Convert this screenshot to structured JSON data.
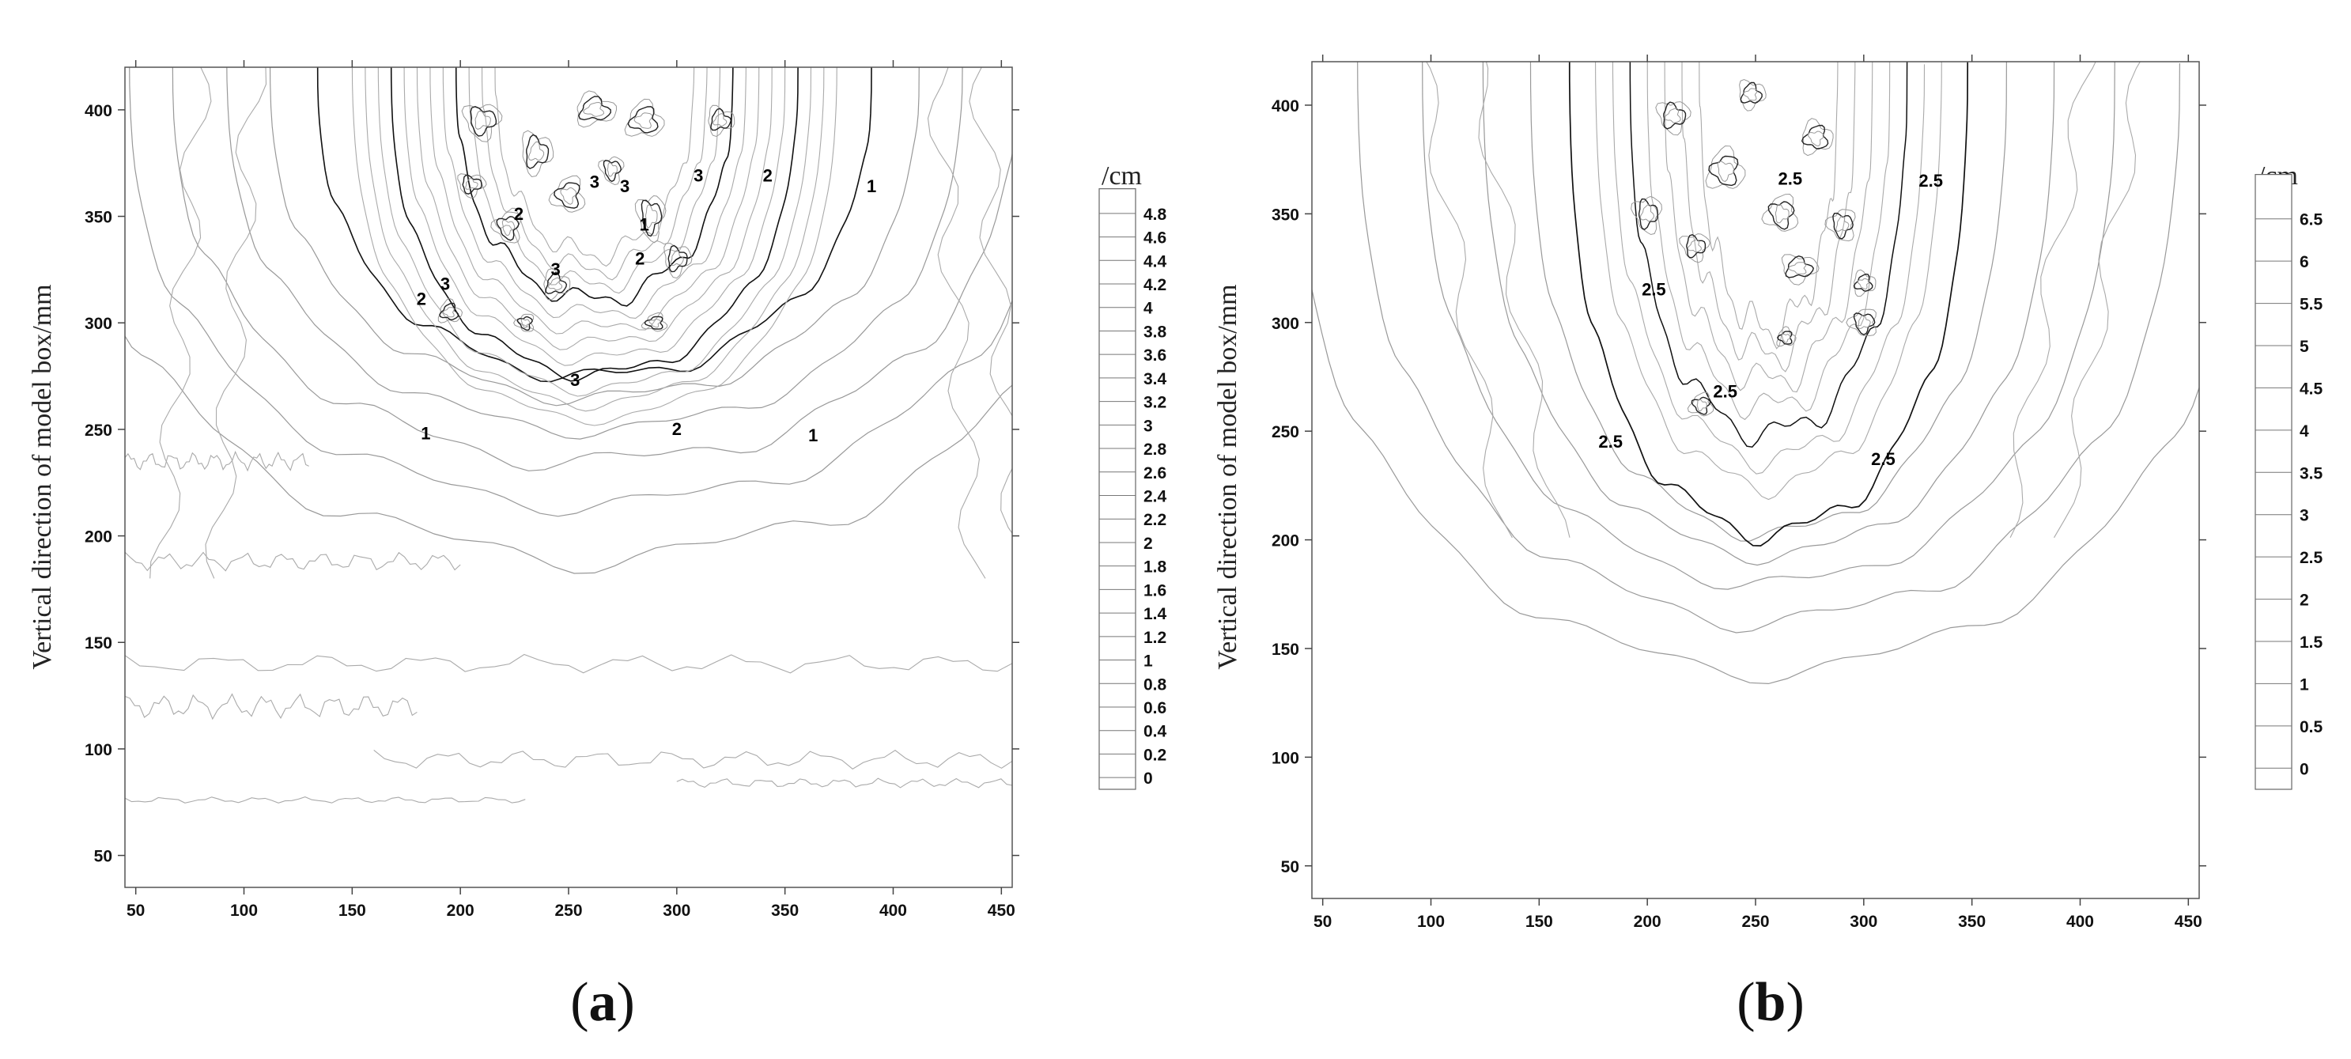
{
  "chart_data": [
    {
      "panel": "a",
      "type": "contour",
      "ylabel": "Vertical direction of model box/mm",
      "xlabel": "",
      "xlim": [
        45,
        455
      ],
      "ylim": [
        35,
        420
      ],
      "x_ticks": [
        "50",
        "100",
        "150",
        "200",
        "250",
        "300",
        "350",
        "400",
        "450"
      ],
      "y_ticks": [
        "50",
        "100",
        "150",
        "200",
        "250",
        "300",
        "350",
        "400"
      ],
      "colorbar_unit": "/cm",
      "colorbar_levels": [
        "4.8",
        "4.6",
        "4.4",
        "4.2",
        "4",
        "3.8",
        "3.6",
        "3.4",
        "3.2",
        "3",
        "2.8",
        "2.6",
        "2.4",
        "2.2",
        "2",
        "1.8",
        "1.6",
        "1.4",
        "1.2",
        "1",
        "0.8",
        "0.6",
        "0.4",
        "0.2",
        "0"
      ],
      "contour_labels": [
        {
          "text": "1",
          "x": 390,
          "y": 364
        },
        {
          "text": "2",
          "x": 342,
          "y": 369
        },
        {
          "text": "3",
          "x": 310,
          "y": 369
        },
        {
          "text": "3",
          "x": 276,
          "y": 364
        },
        {
          "text": "3",
          "x": 262,
          "y": 366
        },
        {
          "text": "2",
          "x": 227,
          "y": 351
        },
        {
          "text": "1",
          "x": 285,
          "y": 346
        },
        {
          "text": "2",
          "x": 283,
          "y": 330
        },
        {
          "text": "3",
          "x": 244,
          "y": 325
        },
        {
          "text": "3",
          "x": 193,
          "y": 318
        },
        {
          "text": "2",
          "x": 182,
          "y": 311
        },
        {
          "text": "3",
          "x": 253,
          "y": 273
        },
        {
          "text": "2",
          "x": 300,
          "y": 250
        },
        {
          "text": "1",
          "x": 184,
          "y": 248
        },
        {
          "text": "1",
          "x": 363,
          "y": 247
        }
      ],
      "panel_label": "a"
    },
    {
      "panel": "b",
      "type": "contour",
      "ylabel": "Vertical direction of model box/mm",
      "xlabel": "",
      "xlim": [
        45,
        455
      ],
      "ylim": [
        35,
        420
      ],
      "x_ticks": [
        "50",
        "100",
        "150",
        "200",
        "250",
        "300",
        "350",
        "400",
        "450"
      ],
      "y_ticks": [
        "50",
        "100",
        "150",
        "200",
        "250",
        "300",
        "350",
        "400"
      ],
      "colorbar_unit": "/cm",
      "colorbar_levels": [
        "6.5",
        "6",
        "5.5",
        "5",
        "4.5",
        "4",
        "3.5",
        "3",
        "2.5",
        "2",
        "1.5",
        "1",
        "0.5",
        "0"
      ],
      "contour_labels": [
        {
          "text": "2.5",
          "x": 266,
          "y": 366
        },
        {
          "text": "2.5",
          "x": 331,
          "y": 365
        },
        {
          "text": "2.5",
          "x": 203,
          "y": 315
        },
        {
          "text": "2.5",
          "x": 236,
          "y": 268
        },
        {
          "text": "2.5",
          "x": 183,
          "y": 245
        },
        {
          "text": "2.5",
          "x": 309,
          "y": 237
        }
      ],
      "panel_label": "b"
    }
  ]
}
